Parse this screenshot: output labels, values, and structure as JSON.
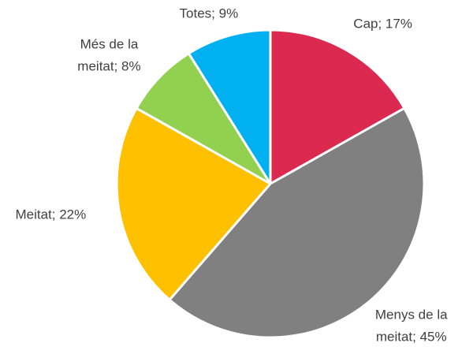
{
  "chart_data": {
    "type": "pie",
    "categories": [
      "Cap",
      "Menys de la meitat",
      "Meitat",
      "Més de la meitat",
      "Totes"
    ],
    "values": [
      17,
      45,
      22,
      8,
      9
    ],
    "value_labels": [
      "Cap; 17%",
      "Menys de la meitat; 45%",
      "Meitat; 22%",
      "Més de la meitat; 8%",
      "Totes; 9%"
    ],
    "colors": [
      "#dc294f",
      "#808080",
      "#ffc000",
      "#92d050",
      "#00b0f0"
    ]
  }
}
